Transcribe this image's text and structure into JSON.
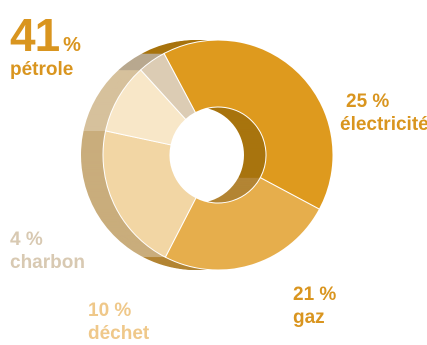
{
  "chart_data": {
    "type": "pie",
    "style": "3d-donut",
    "slices": [
      {
        "value": "41",
        "unit": "%",
        "value_label": "41 %",
        "label": "pétrole",
        "color": "#de9a1e",
        "side_color": "#a8740e"
      },
      {
        "value": "25",
        "unit": "%",
        "value_label": "25 %",
        "label": "électricité",
        "color": "#e6ae4c",
        "side_color": "#b38534"
      },
      {
        "value": "21",
        "unit": "%",
        "value_label": "21 %",
        "label": "gaz",
        "color": "#f2d6a4",
        "side_color": "#c9ad7c"
      },
      {
        "value": "10",
        "unit": "%",
        "value_label": "10 %",
        "label": "déchet",
        "color": "#f8e7c8",
        "side_color": "#d6c19c"
      },
      {
        "value": "4",
        "unit": "%",
        "value_label": "4 %",
        "label": "charbon",
        "color": "#dcccb4",
        "side_color": "#b8a88f"
      }
    ],
    "label_colors": {
      "pétrole": "#d9951f",
      "électricité": "#d9951f",
      "gaz": "#d9951f",
      "déchet": "#efc88a",
      "charbon": "#d8c9b2"
    }
  }
}
